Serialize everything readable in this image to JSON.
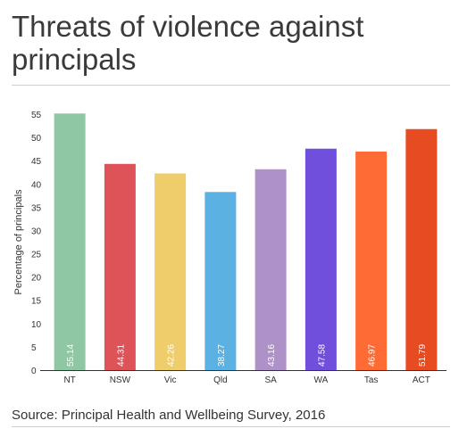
{
  "title": "Threats of violence against principals",
  "source": "Source: Principal Health and Wellbeing Survey, 2016",
  "chart_data": {
    "type": "bar",
    "categories": [
      "NT",
      "NSW",
      "Vic",
      "Qld",
      "SA",
      "WA",
      "Tas",
      "ACT"
    ],
    "values": [
      55.14,
      44.31,
      42.26,
      38.27,
      43.16,
      47.58,
      46.97,
      51.79
    ],
    "value_labels": [
      "55.14",
      "44.31",
      "42.26",
      "38.27",
      "43.16",
      "47.58",
      "46.97",
      "51.79"
    ],
    "colors": [
      "#8fc6a4",
      "#dd5358",
      "#f0cd6b",
      "#5bb1e1",
      "#ae91c6",
      "#6f4fdc",
      "#ff6b35",
      "#e64b22"
    ],
    "ylabel": "Percentage of principals",
    "xlabel": "",
    "ylim": [
      0,
      55
    ],
    "yticks": [
      0,
      5,
      10,
      15,
      20,
      25,
      30,
      35,
      40,
      45,
      50,
      55
    ],
    "grid": false,
    "legend": "none"
  }
}
